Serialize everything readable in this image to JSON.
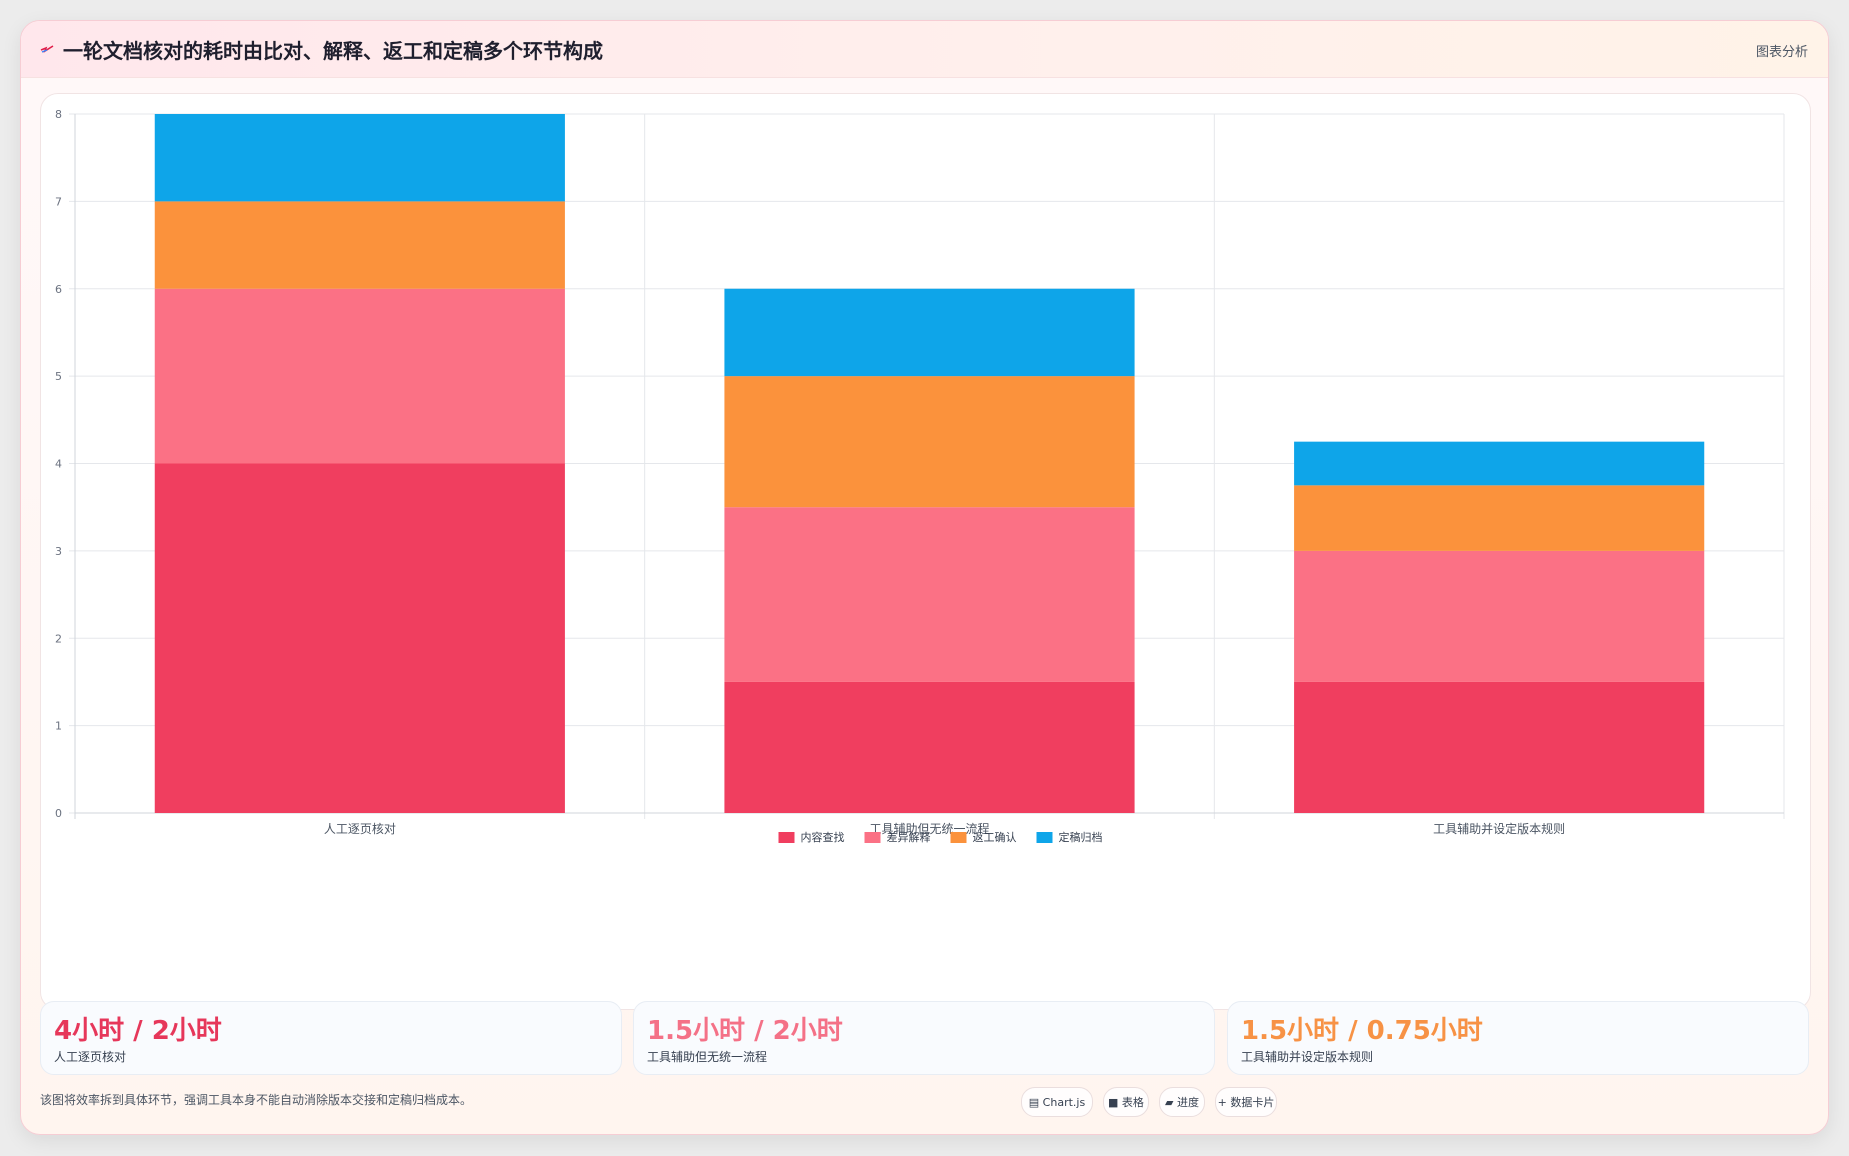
{
  "header": {
    "title": "一轮文档核对的耗时由比对、解释、返工和定稿多个环节构成",
    "tag": "图表分析",
    "icon": "spark-icon",
    "accent": "#e11d48"
  },
  "chart_data": {
    "type": "bar",
    "stacked": true,
    "categories": [
      "人工逐页核对",
      "工具辅助但无统一流程",
      "工具辅助并设定版本规则"
    ],
    "series": [
      {
        "name": "内容查找",
        "color": "#f03e5f",
        "values": [
          4,
          1.5,
          1.5
        ]
      },
      {
        "name": "差异解释",
        "color": "#fb7185",
        "values": [
          2,
          2,
          1.5
        ]
      },
      {
        "name": "返工确认",
        "color": "#fb923c",
        "values": [
          1,
          1.5,
          0.75
        ]
      },
      {
        "name": "定稿归档",
        "color": "#0ea5e9",
        "values": [
          1,
          1,
          0.5
        ]
      }
    ],
    "ylim": [
      0,
      8
    ],
    "yticks": [
      0,
      1,
      2,
      3,
      4,
      5,
      6,
      7,
      8
    ],
    "title": "",
    "xlabel": "",
    "ylabel": "",
    "grid": true,
    "legend": "bottom-center"
  },
  "stats": [
    {
      "value": "4小时 / 2小时",
      "label": "人工逐页核对",
      "color": "#e11d48"
    },
    {
      "value": "1.5小时 / 2小时",
      "label": "工具辅助但无统一流程",
      "color": "#fb7185"
    },
    {
      "value": "1.5小时 / 0.75小时",
      "label": "工具辅助并设定版本规则",
      "color": "#fb923c"
    }
  ],
  "footer": {
    "note": "该图将效率拆到具体环节，强调工具本身不能自动消除版本交接和定稿归档成本。",
    "chips": [
      {
        "label": "▤ Chart.js",
        "icon": "chart-icon"
      },
      {
        "label": "■ 表格",
        "icon": "table-icon"
      },
      {
        "label": "▰ 进度",
        "icon": "progress-icon"
      },
      {
        "label": "+ 数据卡片",
        "icon": "plus-icon"
      }
    ]
  }
}
